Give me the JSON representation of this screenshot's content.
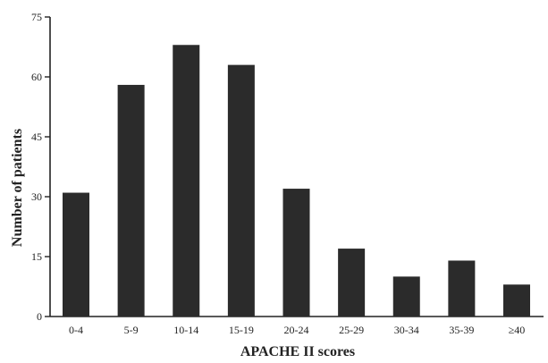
{
  "chart_data": {
    "type": "bar",
    "title": "",
    "xlabel": "APACHE II scores",
    "ylabel": "Number of patients",
    "categories": [
      "0-4",
      "5-9",
      "10-14",
      "15-19",
      "20-24",
      "25-29",
      "30-34",
      "35-39",
      "≥40"
    ],
    "values": [
      31,
      58,
      68,
      63,
      32,
      17,
      10,
      14,
      8
    ],
    "ylim": [
      0,
      75
    ],
    "yticks": [
      0,
      15,
      30,
      45,
      60,
      75
    ],
    "grid": false,
    "legend": "none"
  },
  "colors": {
    "bar": "#2b2b2b",
    "axis": "#222222",
    "background": "#ffffff"
  }
}
